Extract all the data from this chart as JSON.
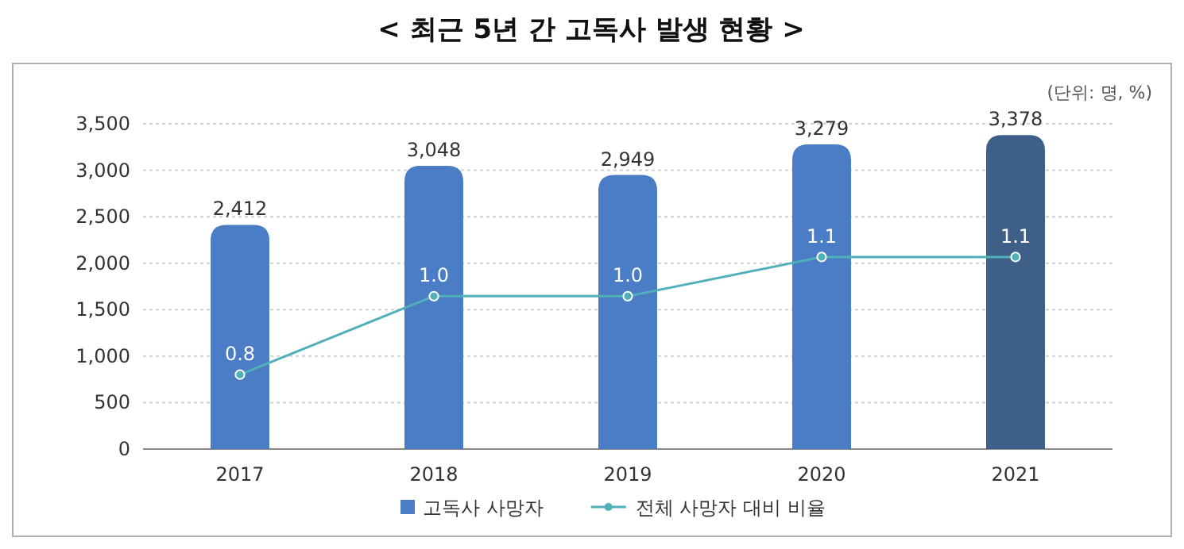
{
  "chart_data": {
    "type": "bar",
    "title": "< 최근 5년 간 고독사 발생 현황 >",
    "annotations": [
      "(단위: 명, %)"
    ],
    "categories": [
      "2017",
      "2018",
      "2019",
      "2020",
      "2021"
    ],
    "series": [
      {
        "name": "고독사 사망자",
        "colors": [
          "#4a7dc5",
          "#4a7dc5",
          "#4a7dc5",
          "#4a7dc5",
          "#3e6088"
        ],
        "color": "#4a7dc5",
        "values": [
          2412,
          3048,
          2949,
          3279,
          3378
        ],
        "value_labels": [
          "2,412",
          "3,048",
          "2,949",
          "3,279",
          "3,378"
        ]
      },
      {
        "name": "전체 사망자 대비 비율",
        "type": "line",
        "axis": "y2",
        "color": "#4fb0ba",
        "marker": "circle",
        "values": [
          0.8,
          1.0,
          1.0,
          1.1,
          1.1
        ],
        "value_labels": [
          "0.8",
          "1.0",
          "1.0",
          "1.1",
          "1.1"
        ]
      }
    ],
    "ylim": [
      0,
      3500
    ],
    "yticks": [
      {
        "value": 0,
        "label": "0"
      },
      {
        "value": 500,
        "label": "500"
      },
      {
        "value": 1000,
        "label": "1,000"
      },
      {
        "value": 1500,
        "label": "1,500"
      },
      {
        "value": 2000,
        "label": "2,000"
      },
      {
        "value": 2500,
        "label": "2,500"
      },
      {
        "value": 3000,
        "label": "3,000"
      },
      {
        "value": 3500,
        "label": "3,500"
      }
    ],
    "y2lim": [
      0.61,
      1.44
    ],
    "grid": "y",
    "legend": "bottom"
  }
}
